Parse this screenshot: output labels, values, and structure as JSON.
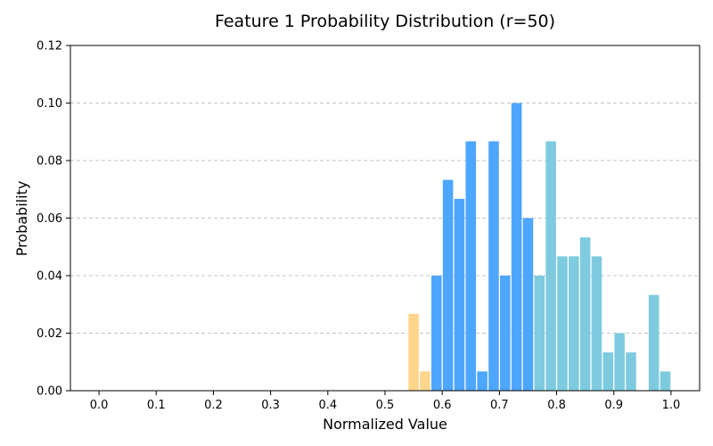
{
  "chart_data": {
    "type": "bar",
    "title": "Feature 1 Probability Distribution (r=50)",
    "xlabel": "Normalized Value",
    "ylabel": "Probability",
    "xlim": [
      -0.05,
      1.05
    ],
    "ylim": [
      0,
      0.12
    ],
    "xticks": [
      "0.0",
      "0.1",
      "0.2",
      "0.3",
      "0.4",
      "0.5",
      "0.6",
      "0.7",
      "0.8",
      "0.9",
      "1.0"
    ],
    "yticks": [
      "0.00",
      "0.02",
      "0.04",
      "0.06",
      "0.08",
      "0.10",
      "0.12"
    ],
    "grid": "horizontal dashed",
    "bin_width": 0.02,
    "bars": [
      {
        "x": 0.55,
        "value": 0.0267,
        "color": "#ffd68a"
      },
      {
        "x": 0.57,
        "value": 0.0067,
        "color": "#ffd68a"
      },
      {
        "x": 0.59,
        "value": 0.04,
        "color": "#4da6ff"
      },
      {
        "x": 0.61,
        "value": 0.0733,
        "color": "#4da6ff"
      },
      {
        "x": 0.63,
        "value": 0.0667,
        "color": "#4da6ff"
      },
      {
        "x": 0.65,
        "value": 0.0867,
        "color": "#4da6ff"
      },
      {
        "x": 0.67,
        "value": 0.0067,
        "color": "#4da6ff"
      },
      {
        "x": 0.69,
        "value": 0.0867,
        "color": "#4da6ff"
      },
      {
        "x": 0.71,
        "value": 0.04,
        "color": "#4da6ff"
      },
      {
        "x": 0.73,
        "value": 0.1,
        "color": "#4da6ff"
      },
      {
        "x": 0.75,
        "value": 0.06,
        "color": "#4da6ff"
      },
      {
        "x": 0.77,
        "value": 0.04,
        "color": "#7ecbdf"
      },
      {
        "x": 0.79,
        "value": 0.0867,
        "color": "#7ecbdf"
      },
      {
        "x": 0.81,
        "value": 0.0467,
        "color": "#7ecbdf"
      },
      {
        "x": 0.83,
        "value": 0.0467,
        "color": "#7ecbdf"
      },
      {
        "x": 0.85,
        "value": 0.0533,
        "color": "#7ecbdf"
      },
      {
        "x": 0.87,
        "value": 0.0467,
        "color": "#7ecbdf"
      },
      {
        "x": 0.89,
        "value": 0.0133,
        "color": "#7ecbdf"
      },
      {
        "x": 0.91,
        "value": 0.02,
        "color": "#7ecbdf"
      },
      {
        "x": 0.93,
        "value": 0.0133,
        "color": "#7ecbdf"
      },
      {
        "x": 0.97,
        "value": 0.0333,
        "color": "#7ecbdf"
      },
      {
        "x": 0.99,
        "value": 0.0067,
        "color": "#7ecbdf"
      }
    ]
  }
}
